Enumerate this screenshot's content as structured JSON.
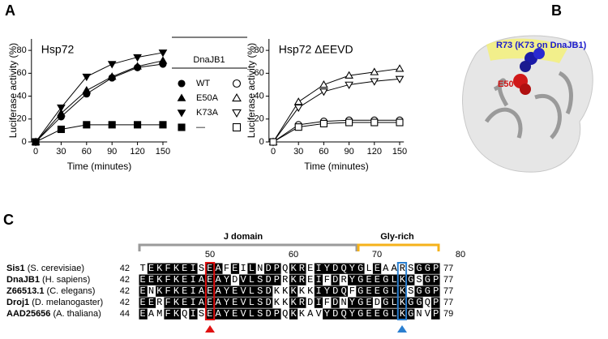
{
  "panel_labels": [
    "A",
    "B",
    "C"
  ],
  "chart_data": [
    {
      "type": "line",
      "title": "Hsp72",
      "x_label": "Time (minutes)",
      "y_label": "Luciferase activity (%)",
      "x": [
        0,
        30,
        60,
        90,
        120,
        150
      ],
      "xlim": [
        -5,
        155
      ],
      "xticks": [
        0,
        30,
        60,
        90,
        120,
        150
      ],
      "ylim": [
        0,
        90
      ],
      "yticks": [
        0,
        20,
        40,
        60,
        80
      ],
      "grid": false,
      "legend_title": "DnaJB1",
      "series": [
        {
          "name": "WT",
          "color": "#000000",
          "marker": "circle",
          "filled": true,
          "values": [
            0,
            22,
            42,
            56,
            65,
            68
          ]
        },
        {
          "name": "E50A",
          "color": "#000000",
          "marker": "triangle-up",
          "filled": true,
          "values": [
            0,
            25,
            45,
            57,
            66,
            71
          ]
        },
        {
          "name": "K73A",
          "color": "#000000",
          "marker": "triangle-down",
          "filled": true,
          "values": [
            0,
            30,
            57,
            68,
            74,
            78
          ]
        },
        {
          "name": "—",
          "color": "#000000",
          "marker": "square",
          "filled": true,
          "values": [
            0,
            11,
            15,
            15,
            15,
            15
          ]
        }
      ]
    },
    {
      "type": "line",
      "title": "Hsp72 ΔEEVD",
      "x_label": "Time (minutes)",
      "y_label": "Luciferase activity (%)",
      "x": [
        0,
        30,
        60,
        90,
        120,
        150
      ],
      "xlim": [
        -5,
        155
      ],
      "xticks": [
        0,
        30,
        60,
        90,
        120,
        150
      ],
      "ylim": [
        0,
        90
      ],
      "yticks": [
        0,
        20,
        40,
        60,
        80
      ],
      "grid": false,
      "series": [
        {
          "color": "#000000",
          "marker": "circle",
          "filled": false,
          "values": [
            0,
            15,
            18,
            19,
            19,
            19
          ]
        },
        {
          "color": "#000000",
          "marker": "triangle-up",
          "filled": false,
          "values": [
            0,
            35,
            50,
            58,
            61,
            64
          ]
        },
        {
          "color": "#000000",
          "marker": "triangle-down",
          "filled": false,
          "values": [
            0,
            30,
            44,
            50,
            53,
            55
          ]
        },
        {
          "color": "#000000",
          "marker": "square",
          "filled": false,
          "values": [
            0,
            13,
            16,
            17,
            17,
            17
          ]
        }
      ]
    }
  ],
  "structure": {
    "labels": [
      "R73 (K73 on DnaJB1)",
      "E50"
    ]
  },
  "alignment": {
    "regions": [
      "J domain",
      "Gly-rich"
    ],
    "ruler": [
      50,
      60,
      70,
      80
    ],
    "rows": [
      {
        "name": "Sis1",
        "species": "(S. cerevisiae)",
        "start": 42,
        "sequence": "TEKFKEISEAFEILNDPQKREIYDQYGLEAARSGGP",
        "end": 77
      },
      {
        "name": "DnaJB1",
        "species": "(H. sapiens)",
        "start": 42,
        "sequence": "EEKFKEIAEAYDVLSDPRKREIFDRYGEEGLKGSGP",
        "end": 77
      },
      {
        "name": "Z66513.1",
        "species": "(C. elegans)",
        "start": 42,
        "sequence": "ENKFKEIAEAYEVLSDKKKKKIYDQFGEEGLKSGGP",
        "end": 77
      },
      {
        "name": "Droj1",
        "species": "(D. melanogaster)",
        "start": 42,
        "sequence": "EERFKEIAEAYEVLSDKKKRDIFDNYGEDGLKGGQP",
        "end": 77
      },
      {
        "name": "AAD25656",
        "species": "(A. thaliana)",
        "start": 44,
        "sequence": "EAMFKQISEAYEVLSDPQKKAVYDQYGEEGLKGNVP",
        "end": 79
      }
    ]
  }
}
